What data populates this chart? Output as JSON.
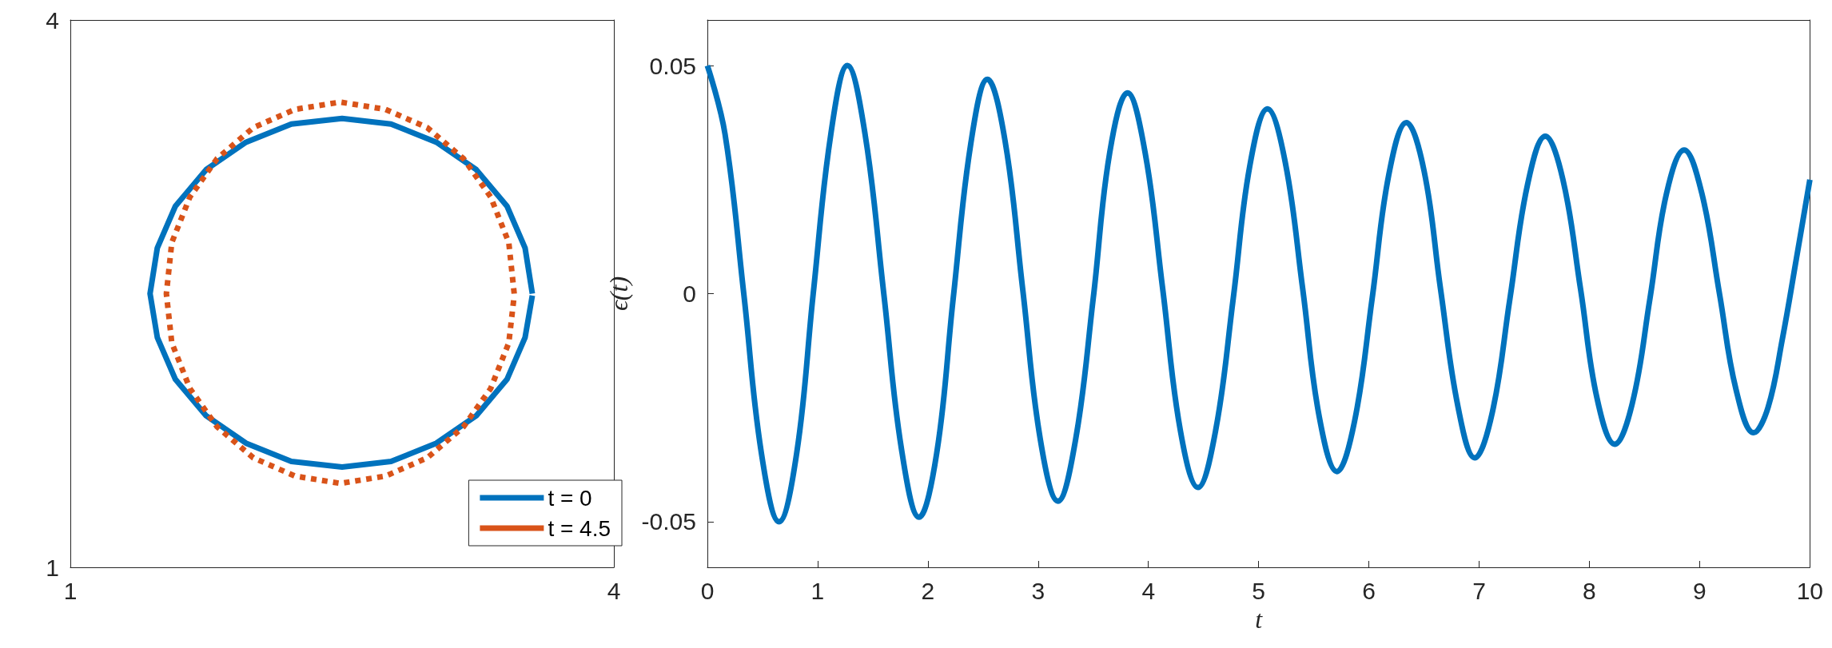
{
  "chart_data": [
    {
      "type": "line",
      "xlim": [
        1,
        4
      ],
      "ylim": [
        1,
        4
      ],
      "xticks": [
        1,
        4
      ],
      "yticks": [
        1,
        4
      ],
      "legend": "bottom right",
      "series": [
        {
          "name": "t = 0",
          "color": "#0072bd",
          "line_style": "solid",
          "x": [
            3.55,
            3.51,
            3.41,
            3.24,
            3.02,
            2.77,
            2.5,
            2.22,
            1.97,
            1.75,
            1.58,
            1.48,
            1.44,
            1.48,
            1.58,
            1.75,
            1.97,
            2.22,
            2.5,
            2.77,
            3.02,
            3.24,
            3.41,
            3.51,
            3.55
          ],
          "values": [
            2.5,
            2.75,
            2.98,
            3.18,
            3.33,
            3.43,
            3.46,
            3.43,
            3.33,
            3.18,
            2.98,
            2.75,
            2.5,
            2.26,
            2.03,
            1.83,
            1.68,
            1.58,
            1.55,
            1.58,
            1.68,
            1.83,
            2.03,
            2.26,
            2.49
          ]
        },
        {
          "name": "t = 4.5",
          "color": "#d95319",
          "line_style": "dotted",
          "x": [
            3.45,
            3.42,
            3.32,
            3.17,
            2.97,
            2.74,
            2.49,
            2.24,
            2.01,
            1.81,
            1.66,
            1.56,
            1.53,
            1.56,
            1.66,
            1.81,
            2.01,
            2.24,
            2.49,
            2.74,
            2.97,
            3.17,
            3.32,
            3.42,
            3.45
          ],
          "values": [
            2.5,
            2.78,
            3.03,
            3.24,
            3.41,
            3.51,
            3.55,
            3.51,
            3.41,
            3.24,
            3.03,
            2.78,
            2.5,
            2.23,
            1.98,
            1.77,
            1.6,
            1.5,
            1.46,
            1.5,
            1.6,
            1.77,
            1.98,
            2.23,
            2.49
          ]
        }
      ]
    },
    {
      "type": "line",
      "xlabel": "t",
      "ylabel": "ϵ(t)",
      "xlim": [
        0,
        10
      ],
      "ylim": [
        -0.06,
        0.06
      ],
      "xticks": [
        0,
        1,
        2,
        3,
        4,
        5,
        6,
        7,
        8,
        9,
        10
      ],
      "yticks": [
        -0.05,
        0,
        0.05
      ],
      "series": [
        {
          "color": "#0072bd",
          "line_style": "solid",
          "x": [
            0,
            0.16,
            0.33,
            0.49,
            0.65,
            0.81,
            0.96,
            1.12,
            1.27,
            1.43,
            1.6,
            1.76,
            1.92,
            2.08,
            2.23,
            2.39,
            2.54,
            2.7,
            2.86,
            3.02,
            3.18,
            3.34,
            3.5,
            3.65,
            3.81,
            3.97,
            4.13,
            4.29,
            4.45,
            4.61,
            4.77,
            4.92,
            5.08,
            5.24,
            5.4,
            5.55,
            5.71,
            5.87,
            6.03,
            6.18,
            6.34,
            6.5,
            6.65,
            6.81,
            6.96,
            7.12,
            7.28,
            7.44,
            7.6,
            7.76,
            7.92,
            8.07,
            8.23,
            8.39,
            8.55,
            8.7,
            8.86,
            9.02,
            9.18,
            9.33,
            9.49,
            9.62,
            9.75,
            9.88,
            10
          ],
          "values": [
            0.05,
            0.035,
            0,
            -0.035,
            -0.05,
            -0.035,
            0,
            0.035,
            0.05,
            0.035,
            0,
            -0.034,
            -0.049,
            -0.035,
            -0.001,
            0.033,
            0.047,
            0.0335,
            0.001,
            -0.032,
            -0.0455,
            -0.032,
            -0.001,
            0.031,
            0.044,
            0.031,
            0.001,
            -0.03,
            -0.0425,
            -0.03,
            -0.001,
            0.028,
            0.0405,
            0.029,
            0.001,
            -0.027,
            -0.039,
            -0.028,
            -0.001,
            0.026,
            0.0375,
            0.027,
            0.001,
            -0.025,
            -0.036,
            -0.026,
            -0.001,
            0.024,
            0.0345,
            0.025,
            0.001,
            -0.023,
            -0.033,
            -0.024,
            -0.001,
            0.022,
            0.0315,
            0.022,
            0,
            -0.021,
            -0.0305,
            -0.025,
            -0.01,
            0.008,
            0.025
          ]
        }
      ]
    }
  ]
}
